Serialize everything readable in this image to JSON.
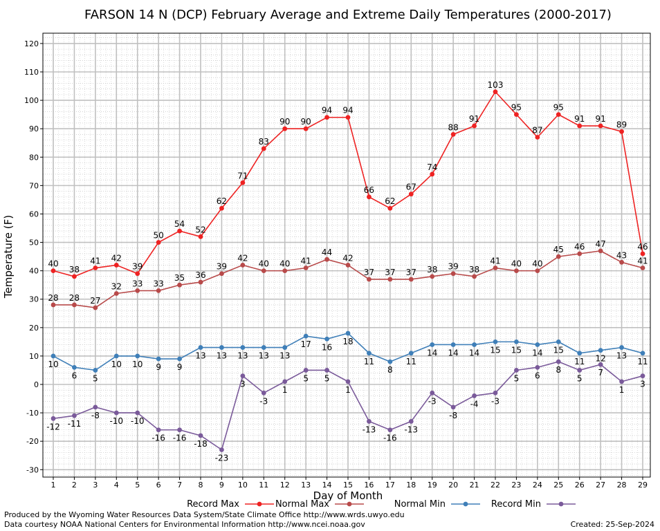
{
  "chart_data": {
    "type": "line",
    "title": "FARSON 14 N (DCP) February Average and Extreme Daily Temperatures (2000-2017)",
    "xlabel": "Day of Month",
    "ylabel": "Temperature (F)",
    "xlim": [
      1,
      29
    ],
    "ylim": [
      -33,
      123
    ],
    "y_ticks": [
      -30,
      -20,
      -10,
      0,
      10,
      20,
      30,
      40,
      50,
      60,
      70,
      80,
      90,
      100,
      110,
      120
    ],
    "grid": true,
    "legend_position": "bottom",
    "x": [
      1,
      2,
      3,
      4,
      5,
      6,
      7,
      8,
      9,
      10,
      11,
      12,
      13,
      14,
      15,
      16,
      17,
      18,
      19,
      20,
      21,
      22,
      23,
      24,
      25,
      26,
      27,
      28,
      29
    ],
    "series": [
      {
        "name": "Record Max",
        "color": "#ee2222",
        "label_pos": "above",
        "values": [
          40,
          38,
          41,
          42,
          39,
          50,
          54,
          52,
          62,
          71,
          83,
          90,
          90,
          94,
          94,
          66,
          62,
          67,
          74,
          88,
          91,
          103,
          95,
          87,
          95,
          91,
          91,
          89,
          46
        ]
      },
      {
        "name": "Normal Max",
        "color": "#b84a4a",
        "label_pos": "above",
        "values": [
          28,
          28,
          27,
          32,
          33,
          33,
          35,
          36,
          39,
          42,
          40,
          40,
          41,
          44,
          42,
          37,
          37,
          37,
          38,
          39,
          38,
          41,
          40,
          40,
          45,
          46,
          47,
          43,
          41
        ]
      },
      {
        "name": "Normal Min",
        "color": "#3f7fb8",
        "label_pos": "below",
        "values": [
          10,
          6,
          5,
          10,
          10,
          9,
          9,
          13,
          13,
          13,
          13,
          13,
          17,
          16,
          18,
          11,
          8,
          11,
          14,
          14,
          14,
          15,
          15,
          14,
          15,
          11,
          12,
          13,
          11
        ]
      },
      {
        "name": "Record Min",
        "color": "#7a5a9a",
        "label_pos": "below",
        "values": [
          -12,
          -11,
          -8,
          -10,
          -10,
          -16,
          -16,
          -18,
          -23,
          3,
          -3,
          1,
          5,
          5,
          1,
          -13,
          -16,
          -13,
          -3,
          -8,
          -4,
          -3,
          5,
          6,
          8,
          5,
          7,
          1,
          3
        ]
      }
    ]
  },
  "credits": {
    "produced_by": "Produced by the Wyoming Water Resources Data System/State Climate Office http://www.wrds.uwyo.edu",
    "data_courtesy": "Data courtesy NOAA National Centers for Environmental Information http://www.ncei.noaa.gov",
    "created": "Created:  25-Sep-2024"
  }
}
